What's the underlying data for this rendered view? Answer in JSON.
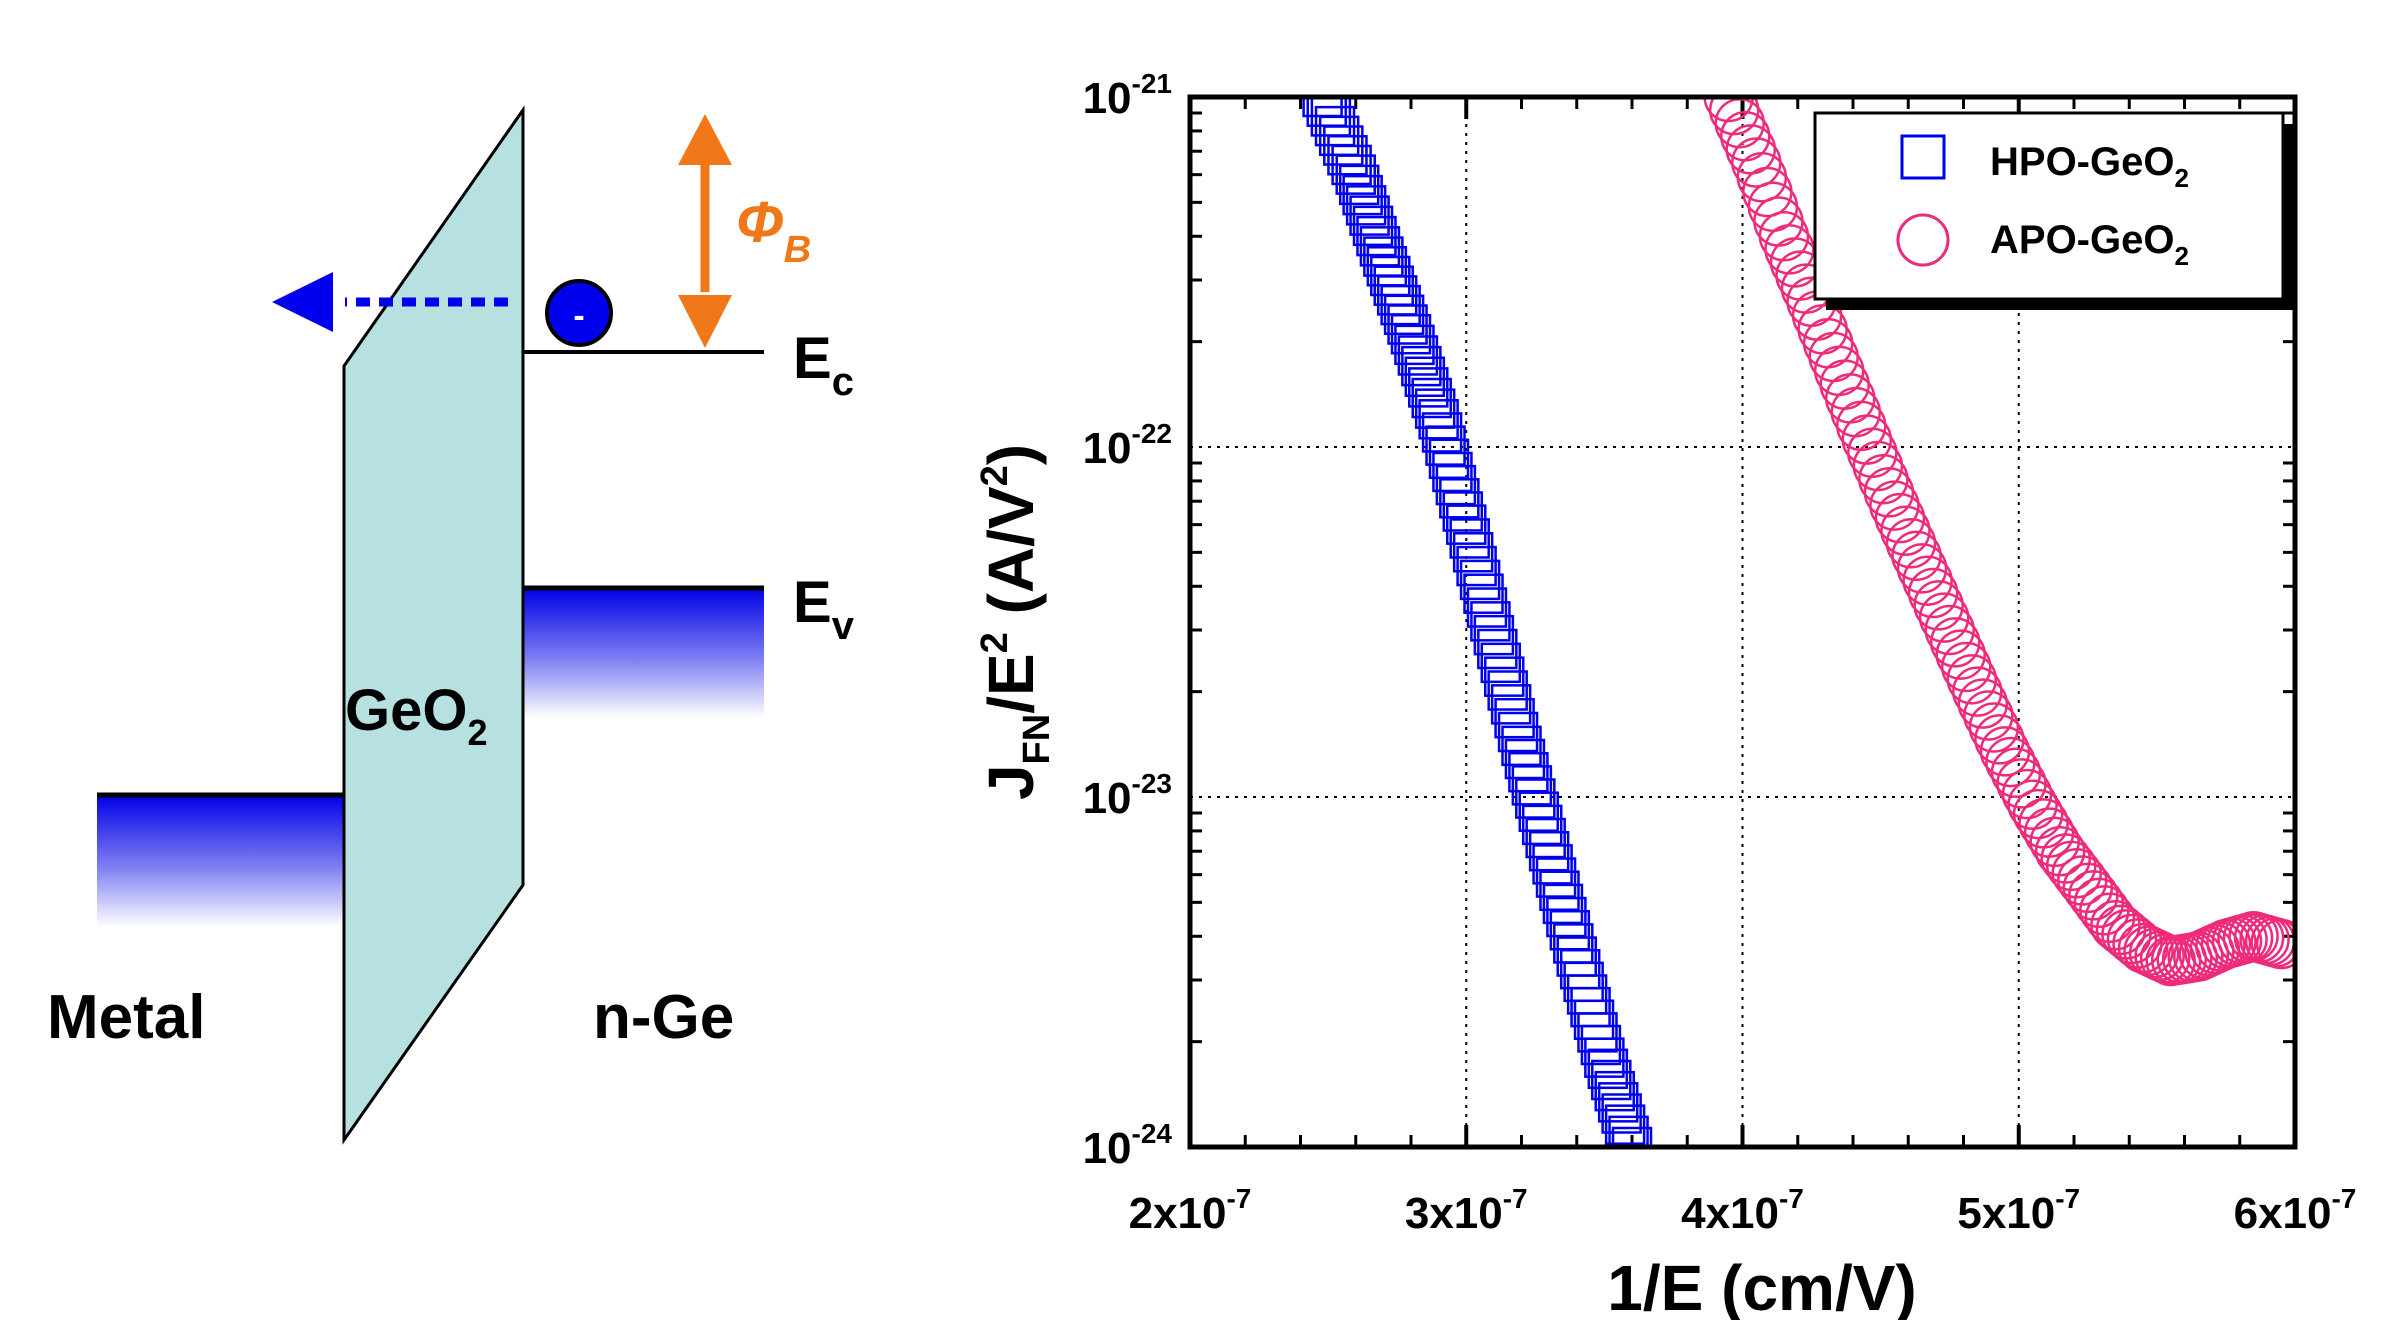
{
  "diagram": {
    "labels": {
      "metal": "Metal",
      "oxide": "GeO",
      "oxide_sub": "2",
      "semiconductor": "n-Ge",
      "ec": "E",
      "ec_sub": "c",
      "ev": "E",
      "ev_sub": "v",
      "barrier": "Φ",
      "barrier_sub": "B",
      "electron": "-"
    },
    "colors": {
      "oxide_fill": "#b7e0e0",
      "band_blue": "#0000e6",
      "arrow_blue": "#0000ee",
      "barrier_orange": "#f07818"
    }
  },
  "chart_data": {
    "type": "scatter",
    "xlabel": "1/E (cm/V)",
    "ylabel": {
      "main": "J",
      "sub": "FN",
      "mid": "/E",
      "sup1": "2",
      "unit": " (A/V",
      "sup2": "2",
      "close": ")"
    },
    "xlim": [
      2e-07,
      6e-07
    ],
    "ylim": [
      1e-24,
      1e-21
    ],
    "yscale": "log",
    "grid": true,
    "legend_position": "top-right",
    "xticks": [
      {
        "value": 2e-07,
        "base": "2x10",
        "exp": "-7"
      },
      {
        "value": 3e-07,
        "base": "3x10",
        "exp": "-7"
      },
      {
        "value": 4e-07,
        "base": "4x10",
        "exp": "-7"
      },
      {
        "value": 5e-07,
        "base": "5x10",
        "exp": "-7"
      },
      {
        "value": 6e-07,
        "base": "6x10",
        "exp": "-7"
      }
    ],
    "yticks": [
      {
        "value": 1e-24,
        "base": "10",
        "exp": "-24"
      },
      {
        "value": 1e-23,
        "base": "10",
        "exp": "-23"
      },
      {
        "value": 1e-22,
        "base": "10",
        "exp": "-22"
      },
      {
        "value": 1e-21,
        "base": "10",
        "exp": "-21"
      }
    ],
    "series": [
      {
        "name": "HPO-GeO",
        "name_sub": "2",
        "marker": "square",
        "color": "#0000ee",
        "x": [
          2.48e-07,
          2.6e-07,
          2.7e-07,
          2.8e-07,
          2.9e-07,
          3e-07,
          3.1e-07,
          3.2e-07,
          3.3e-07,
          3.4e-07,
          3.5e-07,
          3.6e-07
        ],
        "y": [
          1e-21,
          6e-22,
          3.5e-22,
          2.1e-22,
          1.2e-22,
          6e-23,
          2.9e-23,
          1.4e-23,
          7e-24,
          3.5e-24,
          1.8e-24,
          1e-24
        ]
      },
      {
        "name": "APO-GeO",
        "name_sub": "2",
        "marker": "circle",
        "color": "#ee2a7b",
        "x": [
          3.95e-07,
          4.05e-07,
          4.15e-07,
          4.25e-07,
          4.35e-07,
          4.45e-07,
          4.55e-07,
          4.65e-07,
          4.75e-07,
          4.85e-07,
          4.95e-07,
          5.05e-07,
          5.15e-07,
          5.25e-07,
          5.35e-07,
          5.45e-07,
          5.55e-07,
          5.65e-07,
          5.75e-07,
          5.85e-07,
          5.95e-07
        ],
        "y": [
          1e-21,
          6.5e-22,
          4e-22,
          2.6e-22,
          1.65e-22,
          1.05e-22,
          6.8e-23,
          4.5e-23,
          3e-23,
          2e-23,
          1.35e-23,
          9.5e-24,
          7e-24,
          5.5e-24,
          4.3e-24,
          3.7e-24,
          3.4e-24,
          3.5e-24,
          3.8e-24,
          4e-24,
          3.8e-24
        ]
      }
    ]
  }
}
